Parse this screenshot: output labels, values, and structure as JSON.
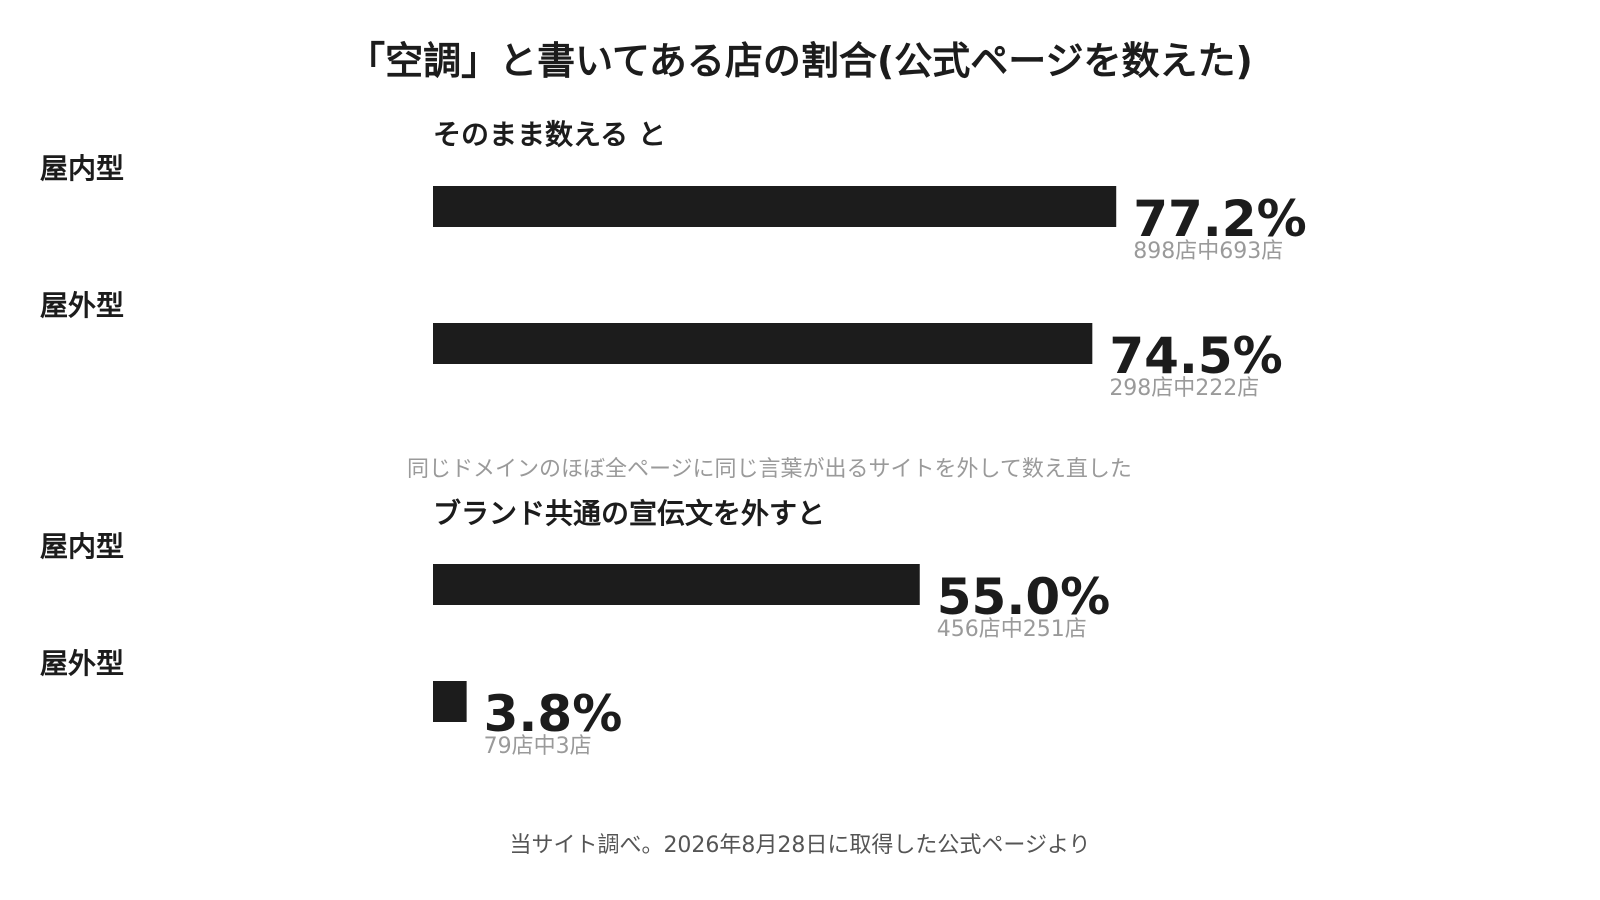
{
  "chart_data": {
    "type": "bar",
    "orientation": "horizontal",
    "title": "「空調」と書いてある店の割合(公式ページを数えた)",
    "unit": "%",
    "xlim": [
      0,
      100
    ],
    "grid": false,
    "legend": "none",
    "panels": [
      {
        "subtitle": "そのまま数える と",
        "categories": [
          "屋内型",
          "屋外型"
        ],
        "values": [
          77.2,
          74.5
        ],
        "value_labels": [
          "77.2%",
          "74.5%"
        ],
        "count_labels": [
          "898店中693店",
          "298店中222店"
        ]
      },
      {
        "note": "同じドメインのほぼ全ページに同じ言葉が出るサイトを外して数え直した",
        "subtitle": "ブランド共通の宣伝文を外すと",
        "categories": [
          "屋内型",
          "屋外型"
        ],
        "values": [
          55.0,
          3.8
        ],
        "value_labels": [
          "55.0%",
          "3.8%"
        ],
        "count_labels": [
          "456店中251店",
          "79店中3店"
        ]
      }
    ],
    "source": "当サイト調べ。2026年8月28日に取得した公式ページより"
  },
  "colors": {
    "bar": "#1c1c1c",
    "value_text": "#1c1c1c",
    "count_text": "#9a9a9a",
    "note_text": "#9a9a9a",
    "source_text": "#555555",
    "background": "#ffffff"
  }
}
